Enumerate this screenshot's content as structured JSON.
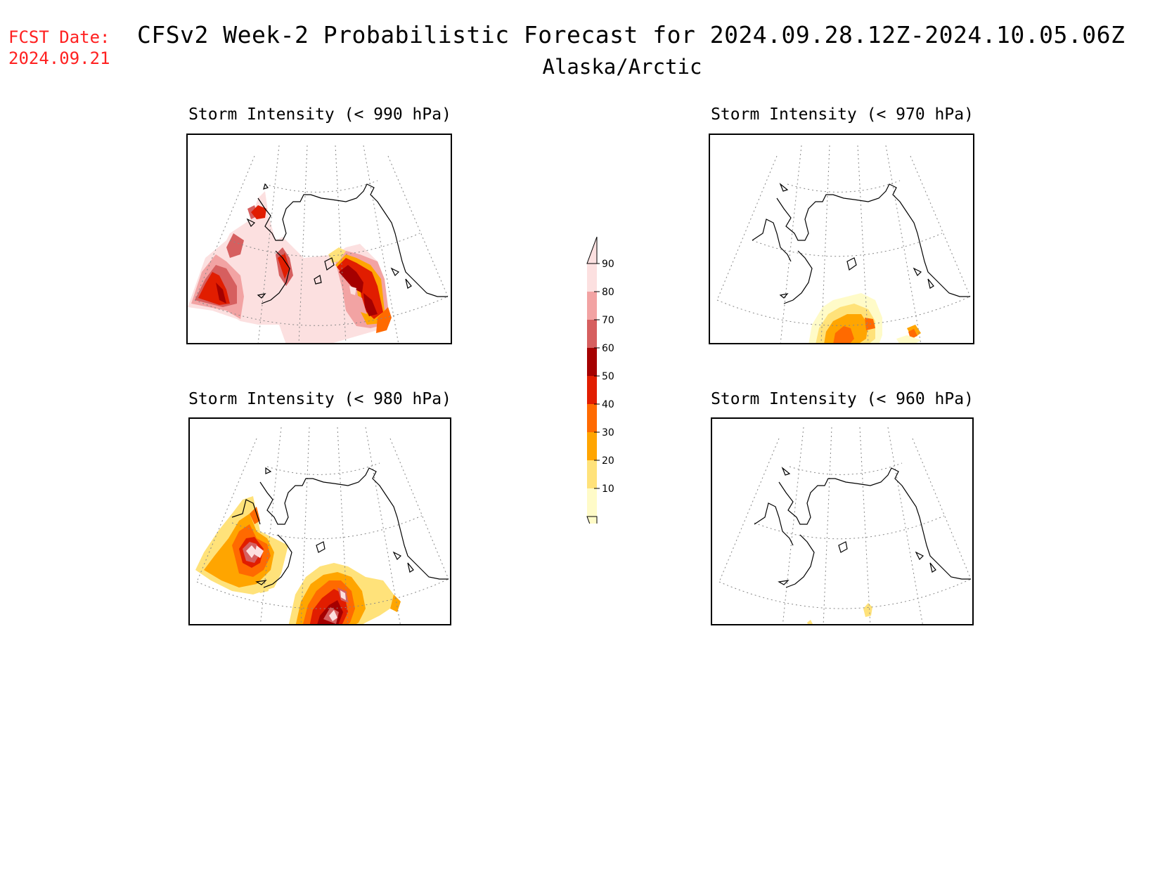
{
  "header": {
    "fcst_label": "FCST Date:",
    "fcst_date": "2024.09.21",
    "title": "CFSv2 Week-2 Probabilistic Forecast for 2024.09.28.12Z-2024.10.05.06Z",
    "subtitle": "Alaska/Arctic"
  },
  "panels": [
    {
      "title": "Storm Intensity (< 990 hPa)"
    },
    {
      "title": "Storm Intensity (< 970 hPa)"
    },
    {
      "title": "Storm Intensity (< 980 hPa)"
    },
    {
      "title": "Storm Intensity (< 960 hPa)"
    }
  ],
  "colorbar": {
    "levels": [
      "10",
      "20",
      "30",
      "40",
      "50",
      "60",
      "70",
      "80",
      "90"
    ],
    "colors": [
      "#fffbc8",
      "#ffe27a",
      "#ffa500",
      "#ff6a00",
      "#e11d00",
      "#a50000",
      "#d65f5f",
      "#f2a3a3",
      "#fce0e0"
    ]
  }
}
